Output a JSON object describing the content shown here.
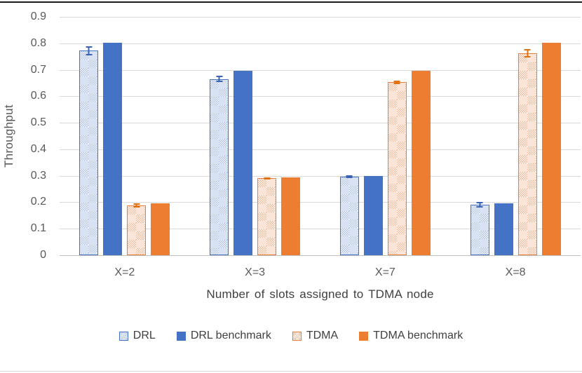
{
  "chart_data": {
    "type": "bar",
    "title": "",
    "categories": [
      "X=2",
      "X=3",
      "X=7",
      "X=8"
    ],
    "series": [
      {
        "name": "DRL",
        "style": "hatched-blue",
        "color": "#4472C4",
        "fill": "#D9E2F3",
        "values": [
          0.772,
          0.665,
          0.297,
          0.19
        ],
        "errors": [
          0.018,
          0.012,
          0.005,
          0.01
        ],
        "error_color": "#3A62B5"
      },
      {
        "name": "DRL benchmark",
        "style": "solid-blue",
        "color": "#4472C4",
        "values": [
          0.802,
          0.695,
          0.3,
          0.197
        ]
      },
      {
        "name": "TDMA",
        "style": "hatched-orange",
        "color": "#ED7D31",
        "fill": "#FBE5D8",
        "values": [
          0.188,
          0.29,
          0.653,
          0.762
        ],
        "errors": [
          0.008,
          0.005,
          0.007,
          0.015
        ],
        "error_color": "#DC710E"
      },
      {
        "name": "TDMA benchmark",
        "style": "solid-orange",
        "color": "#ED7D31",
        "values": [
          0.196,
          0.295,
          0.695,
          0.802
        ]
      }
    ],
    "xlabel": "Number of slots assigned to TDMA node",
    "ylabel": "Throughput",
    "ylim": [
      0,
      0.9
    ],
    "ytick_step": 0.1,
    "ytick_labels": [
      "0",
      "0.1",
      "0.2",
      "0.3",
      "0.4",
      "0.5",
      "0.6",
      "0.7",
      "0.8",
      "0.9"
    ],
    "grid": true,
    "legend_position": "bottom"
  },
  "colors": {
    "gridline": "#D9D9D9",
    "axis_line": "#BFBFBF",
    "tick_text": "#595959",
    "title_text": "#404040",
    "top_rule": "#1A1A1A",
    "bottom_rule": "#D9D9D9"
  }
}
